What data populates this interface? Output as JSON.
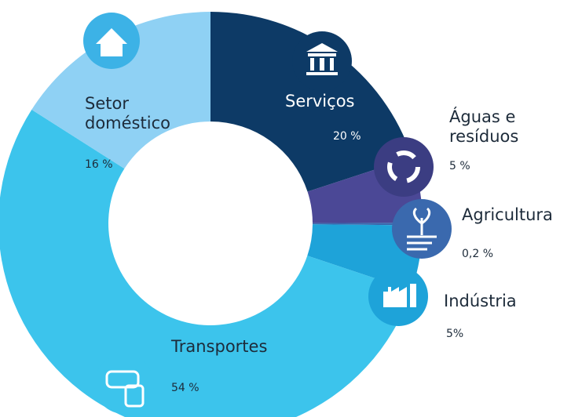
{
  "chart_data": {
    "type": "donut",
    "categories": [
      "Serviços",
      "Águas e resíduos",
      "Agricultura",
      "Indústria",
      "Transportes",
      "Setor doméstico"
    ],
    "values": [
      20,
      5,
      0.2,
      5,
      54,
      16
    ],
    "value_labels": [
      "20 %",
      "5 %",
      "0,2 %",
      "5%",
      "54 %",
      "16 %"
    ],
    "colors": [
      "#0d3a66",
      "#4b4896",
      "#3a69ae",
      "#1ea3d9",
      "#3cc4ec",
      "#8fd1f4"
    ]
  }
}
